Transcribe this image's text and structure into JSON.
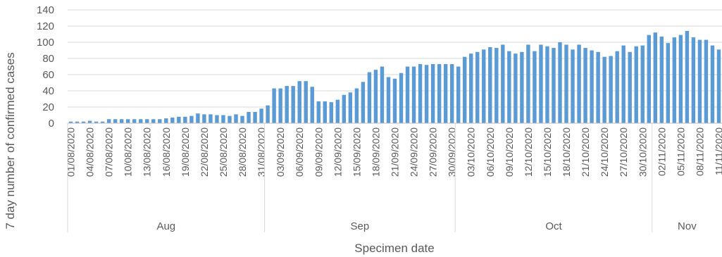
{
  "chart_data": {
    "type": "bar",
    "color": "#5b9bd5",
    "ylabel": "7 day number of confirmed cases",
    "xlabel": "Specimen date",
    "ylim": [
      0,
      140
    ],
    "yticks": [
      0,
      20,
      40,
      60,
      80,
      100,
      120,
      140
    ],
    "grid": true,
    "x_start": "01/08/2020",
    "x_tick_labels": [
      "01/08/2020",
      "04/08/2020",
      "07/08/2020",
      "10/08/2020",
      "13/08/2020",
      "16/08/2020",
      "19/08/2020",
      "22/08/2020",
      "25/08/2020",
      "28/08/2020",
      "31/08/2020",
      "03/09/2020",
      "06/09/2020",
      "09/09/2020",
      "12/09/2020",
      "15/09/2020",
      "18/09/2020",
      "21/09/2020",
      "24/09/2020",
      "27/09/2020",
      "30/09/2020",
      "03/10/2020",
      "06/10/2020",
      "09/10/2020",
      "12/10/2020",
      "15/10/2020",
      "18/10/2020",
      "21/10/2020",
      "24/10/2020",
      "27/10/2020",
      "30/10/2020",
      "02/11/2020",
      "05/11/2020",
      "08/11/2020",
      "11/11/2020"
    ],
    "months": [
      {
        "label": "Aug",
        "days": 31
      },
      {
        "label": "Sep",
        "days": 30
      },
      {
        "label": "Oct",
        "days": 31
      },
      {
        "label": "Nov",
        "days": 11
      }
    ],
    "values": [
      2,
      2,
      2,
      3,
      2,
      2,
      5,
      5,
      5,
      5,
      5,
      5,
      5,
      5,
      5,
      6,
      7,
      8,
      8,
      9,
      12,
      11,
      11,
      10,
      10,
      9,
      11,
      9,
      14,
      14,
      18,
      22,
      43,
      43,
      46,
      46,
      52,
      52,
      45,
      27,
      27,
      26,
      29,
      35,
      38,
      43,
      51,
      63,
      66,
      70,
      57,
      55,
      62,
      70,
      70,
      73,
      72,
      73,
      73,
      73,
      73,
      70,
      82,
      86,
      88,
      91,
      94,
      93,
      97,
      89,
      86,
      88,
      97,
      89,
      97,
      95,
      93,
      100,
      97,
      91,
      97,
      93,
      90,
      88,
      82,
      83,
      89,
      96,
      88,
      95,
      96,
      109,
      112,
      107,
      99,
      106,
      109,
      114,
      106,
      103,
      103,
      96,
      91
    ]
  }
}
